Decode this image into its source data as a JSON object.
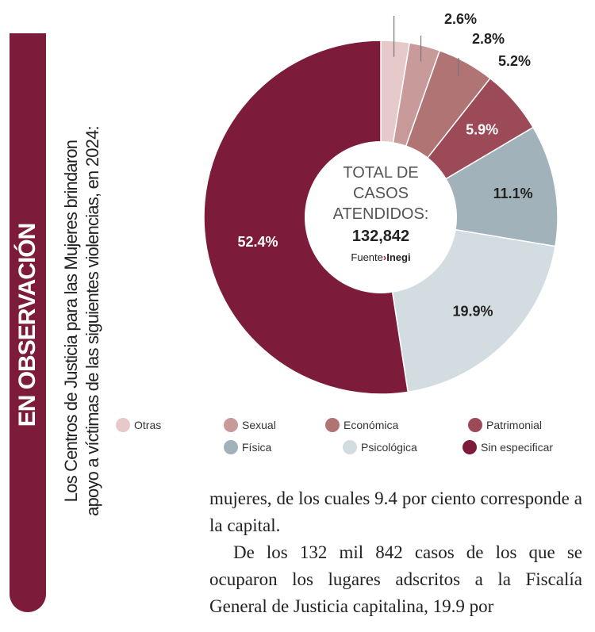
{
  "sidebar": {
    "title": "EN OBSERVACIÓN",
    "subtitle_line1": "Los Centros de Justicia para las Mujeres brindaron",
    "subtitle_line2": "apoyo a víctimas de las siguientes violencias, en 2024:"
  },
  "chart_data": {
    "type": "pie",
    "donut": true,
    "center_text": {
      "line1": "TOTAL DE",
      "line2": "CASOS",
      "line3": "ATENDIDOS:",
      "total": "132,842",
      "source_label": "Fuente",
      "source": "Inegi"
    },
    "categories": [
      "Otras",
      "Sexual",
      "Económica",
      "Patrimonial",
      "Física",
      "Psicológica",
      "Sin especificar"
    ],
    "values": [
      2.6,
      2.8,
      5.2,
      5.9,
      11.1,
      19.9,
      52.4
    ],
    "labels": [
      "2.6%",
      "2.8%",
      "5.2%",
      "5.9%",
      "11.1%",
      "19.9%",
      "52.4%"
    ],
    "colors": [
      "#e6c9c9",
      "#c99a9a",
      "#b07474",
      "#9c4a57",
      "#a2b2ba",
      "#d3dce1",
      "#7d1b3a"
    ],
    "label_colors": [
      "#222",
      "#222",
      "#222",
      "#fff",
      "#222",
      "#222",
      "#fff"
    ],
    "legend_position": "bottom",
    "start": "top, clockwise"
  },
  "body": {
    "p1": "mujeres, de los cuales 9.4 por ciento corresponde a la capital.",
    "p2": "De los 132 mil 842 casos de los que se ocuparon los lugares adscritos a la Fiscalía General de Justicia capitalina, 19.9 por"
  }
}
